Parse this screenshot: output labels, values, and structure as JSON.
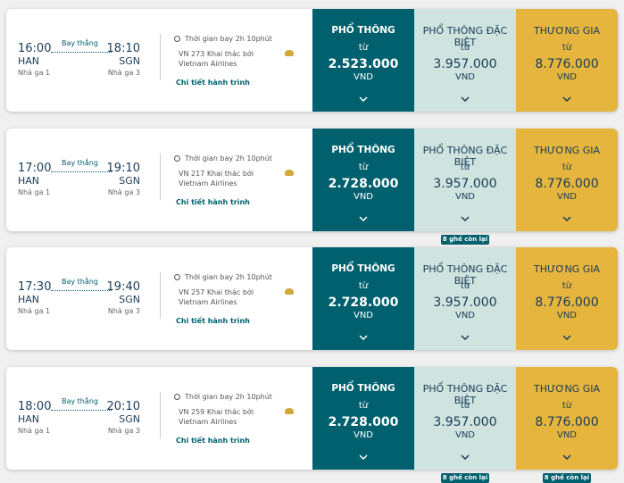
{
  "flights": [
    {
      "depart_time": "16:00",
      "depart_airport": "HAN",
      "depart_terminal": "Nhà ga 1",
      "stop": "Bay thẳng",
      "arrive_time": "18:10",
      "arrive_airport": "SGN",
      "arrive_terminal": "Nhà ga 3",
      "duration": "Thời gian bay 2h 10phút",
      "flight": "VN 273 Khai thác bởi Vietnam Airlines",
      "details": "Chi tiết hành trình",
      "fares": [
        {
          "class": "PHỔ THÔNG",
          "from": "từ",
          "price": "2.523.000",
          "currency": "VND"
        },
        {
          "class": "PHỔ THÔNG ĐẶC BIỆT",
          "from": "từ",
          "price": "3.957.000",
          "currency": "VND"
        },
        {
          "class": "THƯƠNG GIA",
          "from": "từ",
          "price": "8.776.000",
          "currency": "VND"
        }
      ]
    },
    {
      "depart_time": "17:00",
      "depart_airport": "HAN",
      "depart_terminal": "Nhà ga 1",
      "stop": "Bay thẳng",
      "arrive_time": "19:10",
      "arrive_airport": "SGN",
      "arrive_terminal": "Nhà ga 3",
      "duration": "Thời gian bay 2h 10phút",
      "flight": "VN 217 Khai thác bởi Vietnam Airlines",
      "details": "Chi tiết hành trình",
      "fares": [
        {
          "class": "PHỔ THÔNG",
          "from": "từ",
          "price": "2.728.000",
          "currency": "VND"
        },
        {
          "class": "PHỔ THÔNG ĐẶC BIỆT",
          "from": "từ",
          "price": "3.957.000",
          "currency": "VND",
          "seats_left": "8 ghế còn lại"
        },
        {
          "class": "THƯƠNG GIA",
          "from": "từ",
          "price": "8.776.000",
          "currency": "VND"
        }
      ]
    },
    {
      "depart_time": "17:30",
      "depart_airport": "HAN",
      "depart_terminal": "Nhà ga 1",
      "stop": "Bay thẳng",
      "arrive_time": "19:40",
      "arrive_airport": "SGN",
      "arrive_terminal": "Nhà ga 3",
      "duration": "Thời gian bay 2h 10phút",
      "flight": "VN 257 Khai thác bởi Vietnam Airlines",
      "details": "Chi tiết hành trình",
      "fares": [
        {
          "class": "PHỔ THÔNG",
          "from": "từ",
          "price": "2.728.000",
          "currency": "VND"
        },
        {
          "class": "PHỔ THÔNG ĐẶC BIỆT",
          "from": "từ",
          "price": "3.957.000",
          "currency": "VND"
        },
        {
          "class": "THƯƠNG GIA",
          "from": "từ",
          "price": "8.776.000",
          "currency": "VND"
        }
      ]
    },
    {
      "depart_time": "18:00",
      "depart_airport": "HAN",
      "depart_terminal": "Nhà ga 1",
      "stop": "Bay thẳng",
      "arrive_time": "20:10",
      "arrive_airport": "SGN",
      "arrive_terminal": "Nhà ga 3",
      "duration": "Thời gian bay 2h 10phút",
      "flight": "VN 259 Khai thác bởi Vietnam Airlines",
      "details": "Chi tiết hành trình",
      "fares": [
        {
          "class": "PHỔ THÔNG",
          "from": "từ",
          "price": "2.728.000",
          "currency": "VND"
        },
        {
          "class": "PHỔ THÔNG ĐẶC BIỆT",
          "from": "từ",
          "price": "3.957.000",
          "currency": "VND",
          "seats_left": "8 ghế còn lại"
        },
        {
          "class": "THƯƠNG GIA",
          "from": "từ",
          "price": "8.776.000",
          "currency": "VND",
          "seats_left": "8 ghế còn lại"
        }
      ]
    }
  ]
}
